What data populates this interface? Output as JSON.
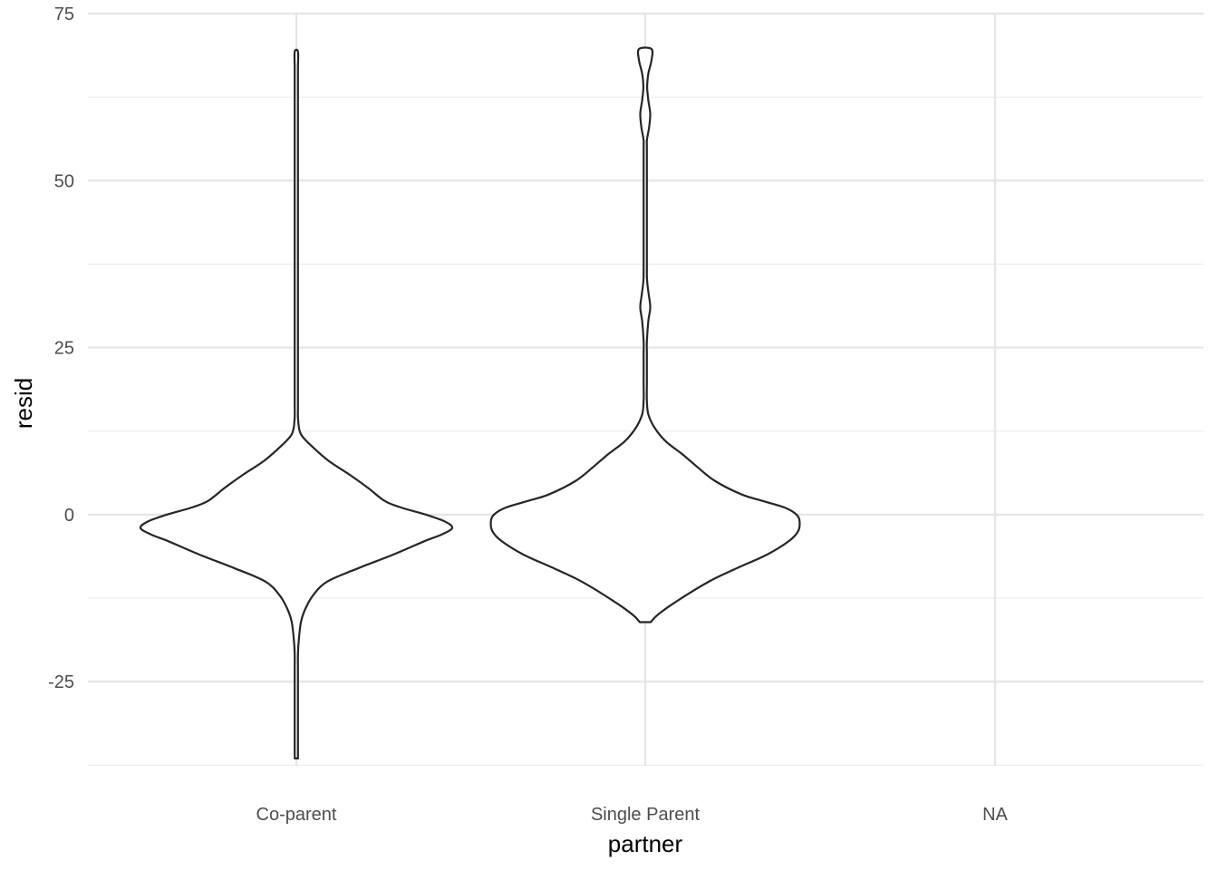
{
  "chart_data": {
    "type": "violin",
    "title": "",
    "xlabel": "partner",
    "ylabel": "resid",
    "categories": [
      "Co-parent",
      "Single Parent",
      "NA"
    ],
    "ylim": [
      -37.6,
      75
    ],
    "y_ticks": [
      -25,
      0,
      25,
      50,
      75
    ],
    "y_tick_labels": [
      "-25",
      "0",
      "25",
      "50",
      "75"
    ],
    "grid": true,
    "violins": [
      {
        "category": "Co-parent",
        "y_min": -36.5,
        "y_max": 69.3,
        "density_profile": [
          [
            -36.5,
            0.01
          ],
          [
            -35,
            0.01
          ],
          [
            -33,
            0.002
          ],
          [
            -30,
            0.008
          ],
          [
            -28,
            0.004
          ],
          [
            -25,
            0.006
          ],
          [
            -23,
            0.003
          ],
          [
            -21,
            0.008
          ],
          [
            -19,
            0.015
          ],
          [
            -16,
            0.03
          ],
          [
            -14,
            0.06
          ],
          [
            -12,
            0.11
          ],
          [
            -10,
            0.2
          ],
          [
            -8,
            0.4
          ],
          [
            -6,
            0.62
          ],
          [
            -4,
            0.82
          ],
          [
            -3,
            0.93
          ],
          [
            -2,
            1.0
          ],
          [
            -1,
            0.95
          ],
          [
            0,
            0.83
          ],
          [
            1,
            0.68
          ],
          [
            2,
            0.57
          ],
          [
            4,
            0.46
          ],
          [
            6,
            0.34
          ],
          [
            8,
            0.21
          ],
          [
            10,
            0.11
          ],
          [
            12,
            0.03
          ],
          [
            14,
            0.012
          ],
          [
            16,
            0.006
          ],
          [
            18,
            0.002
          ],
          [
            22,
            0.0
          ],
          [
            44,
            0.0
          ],
          [
            47,
            0.002
          ],
          [
            49,
            0.0
          ],
          [
            51,
            0.0
          ],
          [
            53,
            0.003
          ],
          [
            55,
            0.0
          ],
          [
            58,
            0.0
          ],
          [
            60,
            0.004
          ],
          [
            62,
            0.006
          ],
          [
            64,
            0.004
          ],
          [
            66,
            0.002
          ],
          [
            67,
            0.004
          ],
          [
            69.3,
            0.004
          ]
        ]
      },
      {
        "category": "Single Parent",
        "y_min": -16.1,
        "y_max": 69.7,
        "density_profile": [
          [
            -16.1,
            0.035
          ],
          [
            -15,
            0.08
          ],
          [
            -13,
            0.2
          ],
          [
            -10,
            0.41
          ],
          [
            -8,
            0.59
          ],
          [
            -6,
            0.78
          ],
          [
            -4,
            0.92
          ],
          [
            -2.5,
            0.98
          ],
          [
            -1,
            0.99
          ],
          [
            0,
            0.97
          ],
          [
            1,
            0.9
          ],
          [
            2,
            0.76
          ],
          [
            3,
            0.62
          ],
          [
            5,
            0.45
          ],
          [
            7,
            0.34
          ],
          [
            9,
            0.24
          ],
          [
            11,
            0.13
          ],
          [
            13,
            0.06
          ],
          [
            15,
            0.02
          ],
          [
            17,
            0.005
          ],
          [
            20,
            0.0
          ],
          [
            24,
            0.0
          ],
          [
            26,
            0.002
          ],
          [
            29,
            0.02
          ],
          [
            31,
            0.032
          ],
          [
            33,
            0.022
          ],
          [
            35,
            0.012
          ],
          [
            38,
            0.0
          ],
          [
            54,
            0.0
          ],
          [
            56,
            0.008
          ],
          [
            58,
            0.025
          ],
          [
            60,
            0.032
          ],
          [
            62,
            0.02
          ],
          [
            64,
            0.012
          ],
          [
            66,
            0.02
          ],
          [
            68,
            0.04
          ],
          [
            69.7,
            0.04
          ]
        ]
      }
    ]
  }
}
